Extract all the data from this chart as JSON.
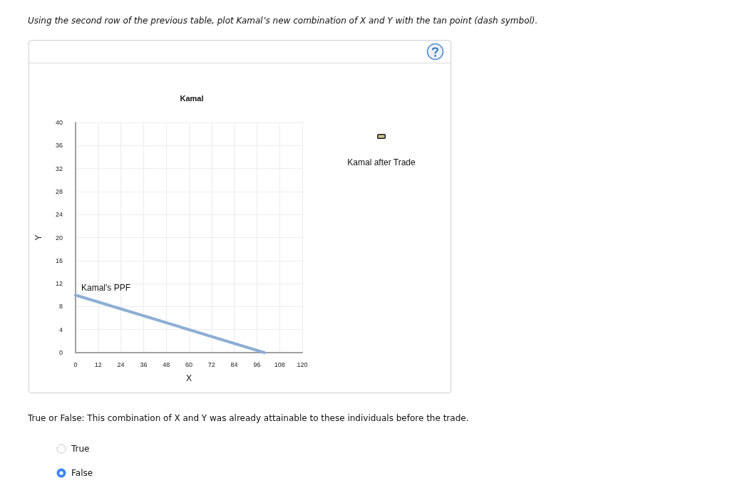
{
  "chart_data": {
    "type": "line",
    "title": "Kamal",
    "xlabel": "X",
    "ylabel": "Y",
    "x": [
      0,
      100
    ],
    "series": [
      {
        "name": "Kamal's PPF",
        "color": "#8eaed4",
        "values": [
          10,
          0
        ]
      }
    ],
    "xlim": [
      0,
      120
    ],
    "xticks": [
      0,
      12,
      24,
      36,
      48,
      60,
      72,
      84,
      96,
      108,
      120
    ],
    "ylim": [
      0,
      40
    ],
    "yticks": [
      0,
      4,
      8,
      12,
      16,
      20,
      24,
      28,
      32,
      36,
      40
    ],
    "grid": true,
    "marker": "none",
    "annotations": [
      "Using the second row of the previous table, plot Kamal’s new combination of X and Y with the tan point (dash symbol).",
      "Kamal after Trade",
      "True or False: This combination of X and Y was already attainable to these individuals before the trade.",
      "True",
      "False"
    ]
  }
}
